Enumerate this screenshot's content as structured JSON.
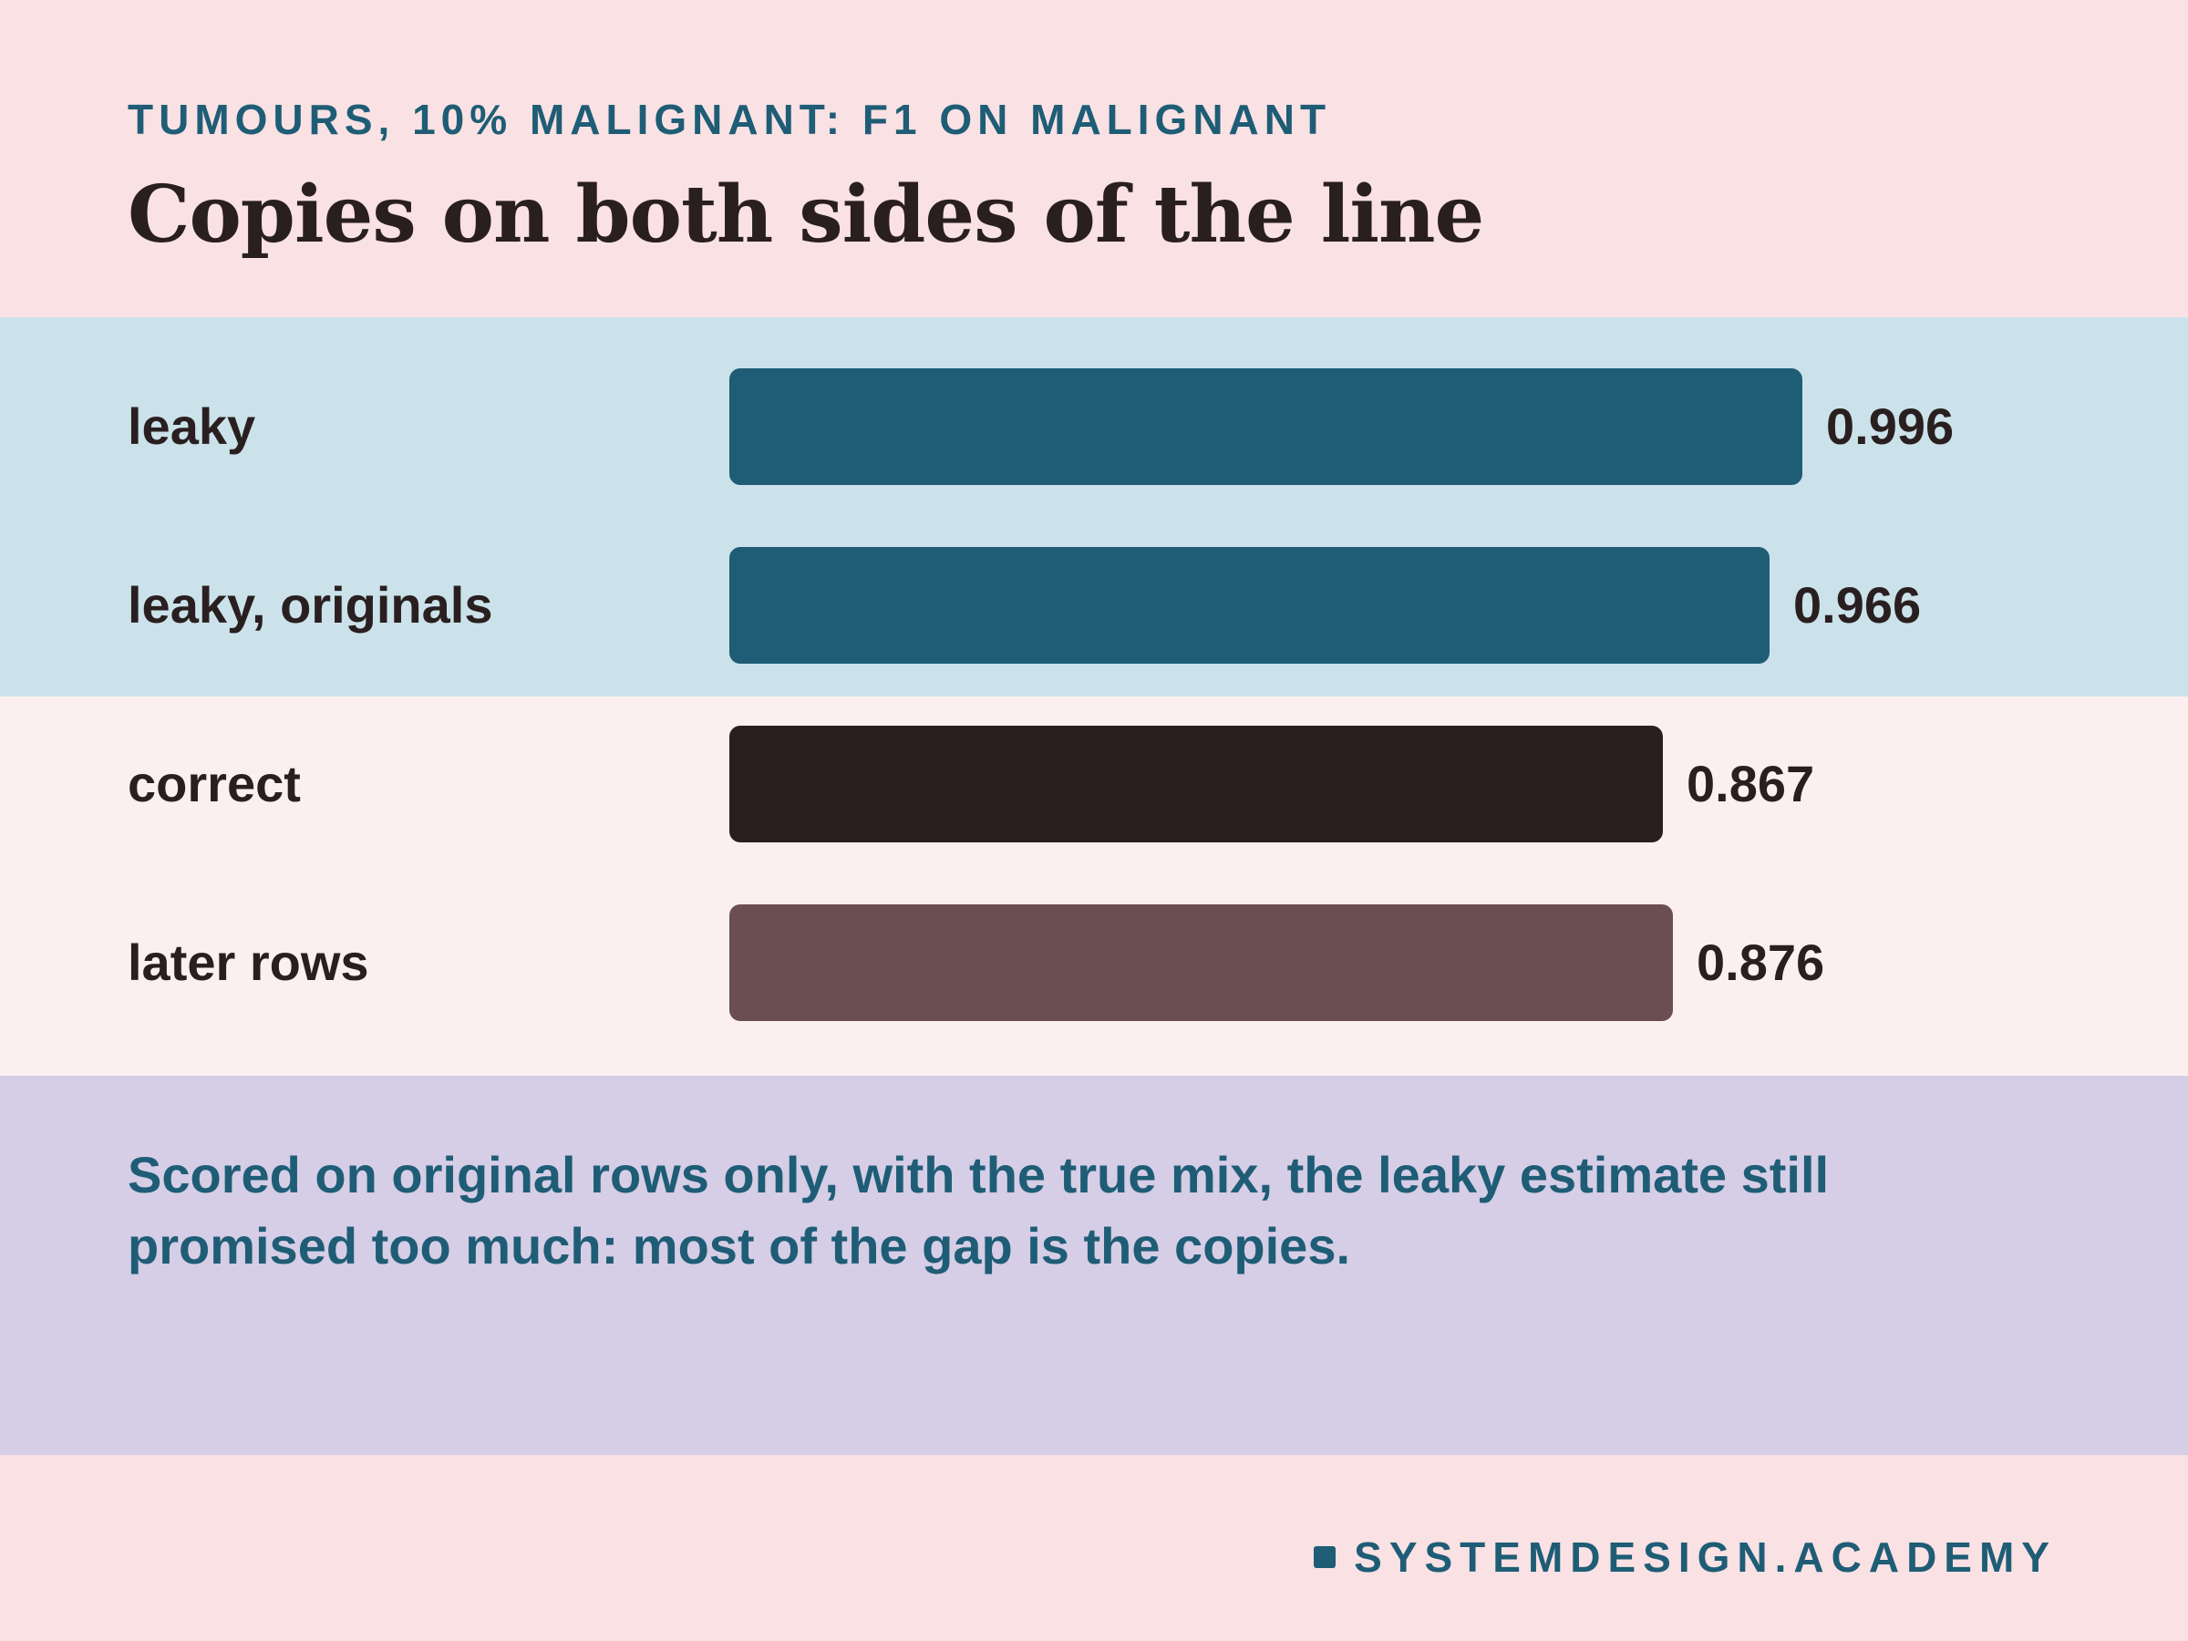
{
  "header": {
    "kicker": "TUMOURS, 10% MALIGNANT: F1 ON MALIGNANT",
    "title": "Copies on both sides of the line"
  },
  "chart_data": {
    "type": "bar",
    "orientation": "horizontal",
    "categories": [
      "leaky",
      "leaky, originals",
      "correct",
      "later rows"
    ],
    "values": [
      0.996,
      0.966,
      0.867,
      0.876
    ],
    "value_labels": [
      "0.996",
      "0.966",
      "0.867",
      "0.876"
    ],
    "colors": [
      "#1e5d75",
      "#1e5d75",
      "#2a1f20",
      "#6a4e51"
    ],
    "xlim": [
      0,
      1.3
    ],
    "grid": false
  },
  "note": {
    "text": "Scored on original rows only, with the true mix, the leaky estimate still promised too much: most of the gap is the copies."
  },
  "footer": {
    "brand": "SYSTEMDESIGN.ACADEMY"
  }
}
